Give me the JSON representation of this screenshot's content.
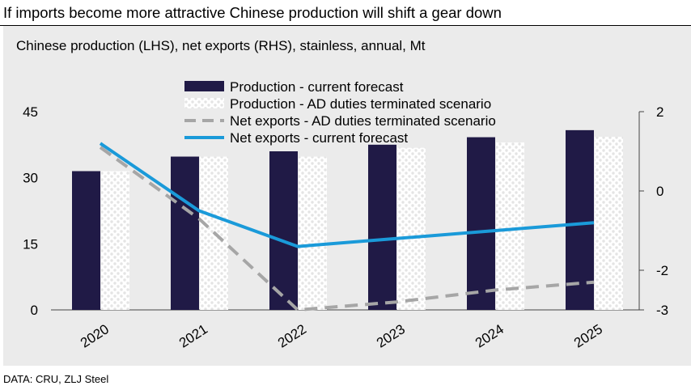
{
  "headline": "If imports become more attractive Chinese production will shift a gear down",
  "source": "DATA: CRU, ZLJ Steel",
  "chart_data": {
    "type": "bar",
    "title": "Chinese production (LHS), net exports (RHS), stainless, annual, Mt",
    "categories": [
      "2020",
      "2021",
      "2022",
      "2023",
      "2024",
      "2025"
    ],
    "series": [
      {
        "name": "Production - current forecast",
        "axis": "left",
        "kind": "bar",
        "color": "#201a46",
        "values": [
          31.5,
          34.8,
          36.0,
          37.5,
          39.2,
          40.8
        ]
      },
      {
        "name": "Production - AD duties terminated scenario",
        "axis": "left",
        "kind": "bar-pattern",
        "color": "#ffffff",
        "values": [
          31.5,
          34.8,
          34.8,
          36.8,
          38.0,
          39.3
        ]
      },
      {
        "name": "Net exports - AD duties terminated scenario",
        "axis": "right",
        "kind": "line-dashed",
        "color": "#a6a6a6",
        "values": [
          1.1,
          -0.7,
          -3.0,
          -2.8,
          -2.5,
          -2.3
        ]
      },
      {
        "name": "Net exports - current forecast",
        "axis": "right",
        "kind": "line",
        "color": "#1a9ad9",
        "values": [
          1.2,
          -0.5,
          -1.4,
          -1.2,
          -1.0,
          -0.8
        ]
      }
    ],
    "y_left": {
      "min": 0,
      "max": 45,
      "ticks": [
        0,
        15,
        30,
        45
      ]
    },
    "y_right": {
      "min": -3,
      "max": 2,
      "ticks": [
        -3,
        -2,
        0,
        2
      ]
    },
    "legend_position": "top-center",
    "grid": false
  }
}
